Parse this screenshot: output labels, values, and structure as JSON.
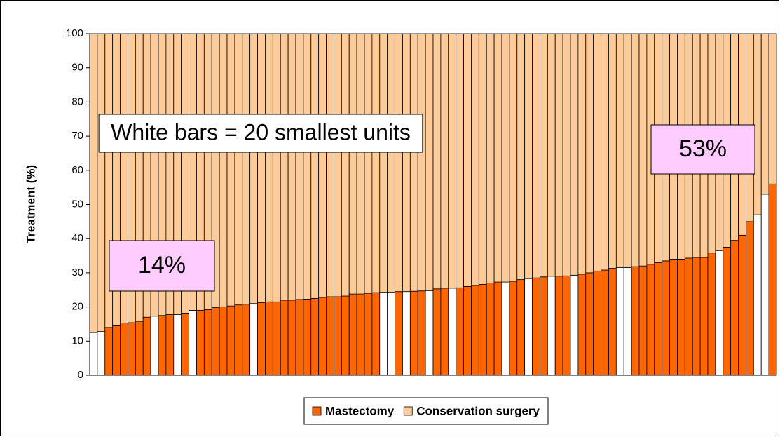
{
  "chart_data": {
    "type": "stacked_bar",
    "ylabel": "Treatment (%)",
    "ylim": [
      0,
      100
    ],
    "yticks": [
      0,
      10,
      20,
      30,
      40,
      50,
      60,
      70,
      80,
      90,
      100
    ],
    "series": [
      {
        "name": "Mastectomy",
        "color": "#ff6600",
        "highlight_color": "#ffffff",
        "highlight": [
          0,
          1,
          8,
          11,
          13,
          21,
          38,
          39,
          41,
          44,
          47,
          54,
          57,
          60,
          63,
          69,
          70,
          82,
          87,
          88
        ],
        "values": [
          12.5,
          12.8,
          14,
          14.5,
          15.3,
          15.4,
          15.8,
          17,
          17.3,
          17.5,
          17.8,
          17.8,
          18.2,
          19,
          19,
          19.2,
          19.8,
          20,
          20.3,
          20.6,
          20.8,
          21,
          21.3,
          21.5,
          21.5,
          22,
          22,
          22.2,
          22.3,
          22.5,
          22.8,
          23,
          23,
          23.2,
          23.8,
          23.8,
          24,
          24.2,
          24.3,
          24.3,
          24.5,
          24.5,
          24.6,
          24.7,
          24.8,
          25.3,
          25.5,
          25.5,
          25.6,
          26,
          26.3,
          26.6,
          27,
          27.3,
          27.3,
          27.5,
          28,
          28.3,
          28.5,
          28.8,
          29,
          29,
          29.1,
          29.3,
          29.6,
          30,
          30.5,
          30.8,
          31.3,
          31.5,
          31.5,
          31.8,
          32,
          32.5,
          33,
          33.5,
          34,
          34,
          34.3,
          34.5,
          34.5,
          35.8,
          36.5,
          37.5,
          39.5,
          41,
          45,
          47,
          53,
          56
        ]
      },
      {
        "name": "Conservation surgery",
        "color": "#ffcc99",
        "values": [
          87.5,
          87.2,
          86,
          85.5,
          84.7,
          84.6,
          84.2,
          83,
          82.7,
          82.5,
          82.2,
          82.2,
          81.8,
          81,
          81,
          80.8,
          80.2,
          80,
          79.7,
          79.4,
          79.2,
          79,
          78.7,
          78.5,
          78.5,
          78,
          78,
          77.8,
          77.7,
          77.5,
          77.2,
          77,
          77,
          76.8,
          76.2,
          76.2,
          76,
          75.8,
          75.7,
          75.7,
          75.5,
          75.5,
          75.4,
          75.3,
          75.2,
          74.7,
          74.5,
          74.5,
          74.4,
          74,
          73.7,
          73.4,
          73,
          72.7,
          72.7,
          72.5,
          72,
          71.7,
          71.5,
          71.2,
          71,
          71,
          70.9,
          70.7,
          70.4,
          70,
          69.5,
          69.2,
          68.7,
          68.5,
          68.5,
          68.2,
          68,
          67.5,
          67,
          66.5,
          66,
          66,
          65.7,
          65.5,
          65.5,
          64.2,
          63.5,
          62.5,
          60.5,
          59,
          55,
          53,
          47,
          44
        ]
      }
    ],
    "annotations": [
      "White bars = 20 smallest units",
      "14%",
      "53%"
    ],
    "legend": "bottom"
  }
}
